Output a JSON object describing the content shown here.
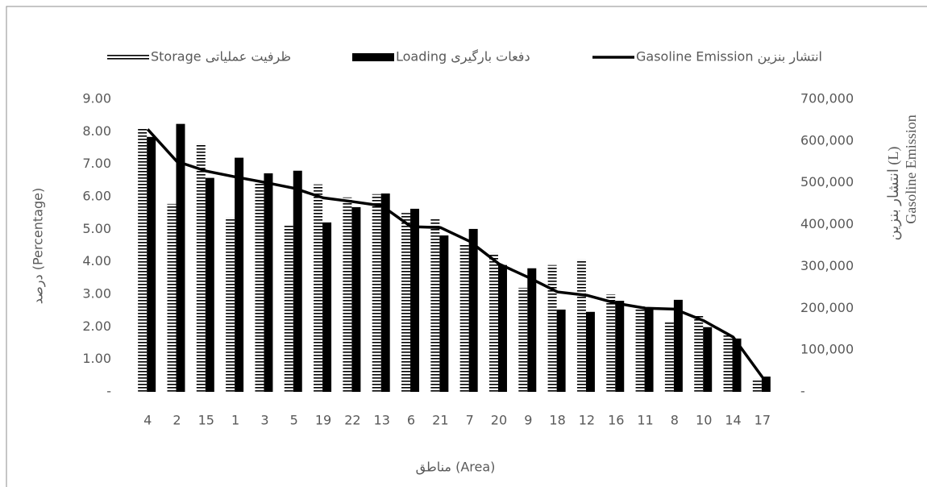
{
  "chart_data": {
    "type": "bar-line",
    "xlabel": "مناطق (Area)",
    "ylabel": "درصد (Percentage)",
    "y2label_lines": [
      "انتشار بنزین (L)",
      "Gasoline Emission"
    ],
    "categories": [
      "4",
      "2",
      "15",
      "1",
      "3",
      "5",
      "19",
      "22",
      "13",
      "6",
      "21",
      "7",
      "20",
      "9",
      "18",
      "12",
      "16",
      "11",
      "8",
      "10",
      "14",
      "17"
    ],
    "series": [
      {
        "name": "ظرفیت عملیاتی Storage",
        "kind": "hatched-bar",
        "color": "#000000",
        "values": [
          8.1,
          5.78,
          7.64,
          5.36,
          6.4,
          5.14,
          6.38,
          5.98,
          6.08,
          5.5,
          5.31,
          4.54,
          4.27,
          3.2,
          3.9,
          4.07,
          3.0,
          2.63,
          2.18,
          2.38,
          1.76,
          0.4
        ]
      },
      {
        "name": "دفعات بارگیری Loading",
        "kind": "bar",
        "color": "#000000",
        "values": [
          7.84,
          8.24,
          6.58,
          7.2,
          6.72,
          6.8,
          5.21,
          5.68,
          6.1,
          5.63,
          4.81,
          5.01,
          3.9,
          3.8,
          2.53,
          2.46,
          2.8,
          2.6,
          2.83,
          1.99,
          1.64,
          0.47
        ]
      },
      {
        "name": "انتشار بنزین Gasoline Emission",
        "kind": "line",
        "color": "#000000",
        "axis": "y2",
        "values": [
          628000,
          551000,
          528000,
          514000,
          501000,
          487000,
          464000,
          455000,
          445000,
          395000,
          393000,
          360000,
          306000,
          274000,
          239000,
          231000,
          212000,
          200000,
          198000,
          170000,
          131000,
          35000
        ]
      }
    ],
    "ylim": [
      0,
      9
    ],
    "yticks": [
      {
        "value": 0,
        "label": "-"
      },
      {
        "value": 1,
        "label": "1.00"
      },
      {
        "value": 2,
        "label": "2.00"
      },
      {
        "value": 3,
        "label": "3.00"
      },
      {
        "value": 4,
        "label": "4.00"
      },
      {
        "value": 5,
        "label": "5.00"
      },
      {
        "value": 6,
        "label": "6.00"
      },
      {
        "value": 7,
        "label": "7.00"
      },
      {
        "value": 8,
        "label": "8.00"
      },
      {
        "value": 9,
        "label": "9.00"
      }
    ],
    "y2lim": [
      0,
      700000
    ],
    "y2ticks": [
      {
        "value": 0,
        "label": "-"
      },
      {
        "value": 100000,
        "label": "100,000"
      },
      {
        "value": 200000,
        "label": "200,000"
      },
      {
        "value": 300000,
        "label": "300,000"
      },
      {
        "value": 400000,
        "label": "400,000"
      },
      {
        "value": 500000,
        "label": "500,000"
      },
      {
        "value": 600000,
        "label": "600,000"
      },
      {
        "value": 700000,
        "label": "700,000"
      }
    ],
    "grid": false,
    "legend": "top"
  }
}
